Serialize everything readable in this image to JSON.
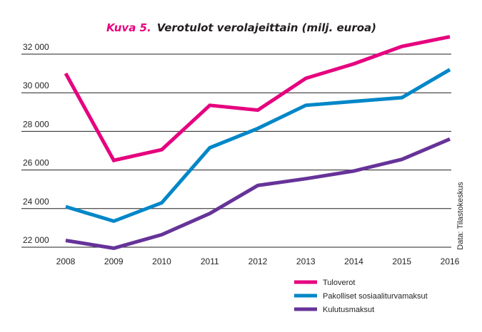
{
  "chart_data": {
    "type": "line",
    "title_prefix": "Kuva 5.",
    "title": "Verotulot verolajeittain (milj. euroa)",
    "source": "Data: Tilastokeskus",
    "xlabel": "",
    "ylabel": "",
    "categories": [
      "2008",
      "2009",
      "2010",
      "2011",
      "2012",
      "2013",
      "2014",
      "2015",
      "2016"
    ],
    "y_ticks": [
      22000,
      24000,
      26000,
      28000,
      30000,
      32000
    ],
    "y_tick_labels": [
      "22 000",
      "24 000",
      "26 000",
      "28 000",
      "30 000",
      "32 000"
    ],
    "ylim": [
      21500,
      33000
    ],
    "grid": true,
    "legend_position": "bottom-right",
    "series": [
      {
        "name": "Tuloverot",
        "color": "#e6007e",
        "values": [
          31000,
          26500,
          27050,
          29350,
          29100,
          30750,
          31500,
          32400,
          32900
        ]
      },
      {
        "name": "Pakolliset sosiaaliturvamaksut",
        "color": "#0087c8",
        "values": [
          24100,
          23350,
          24300,
          27150,
          28150,
          29350,
          29550,
          29750,
          31200
        ]
      },
      {
        "name": "Kulutusmaksut",
        "color": "#663399",
        "values": [
          22350,
          21950,
          22650,
          23750,
          25200,
          25550,
          25950,
          26550,
          27600
        ]
      }
    ]
  },
  "colors": {
    "title_prefix": "#e6007e",
    "title": "#231f20",
    "grid": "#231f20"
  }
}
